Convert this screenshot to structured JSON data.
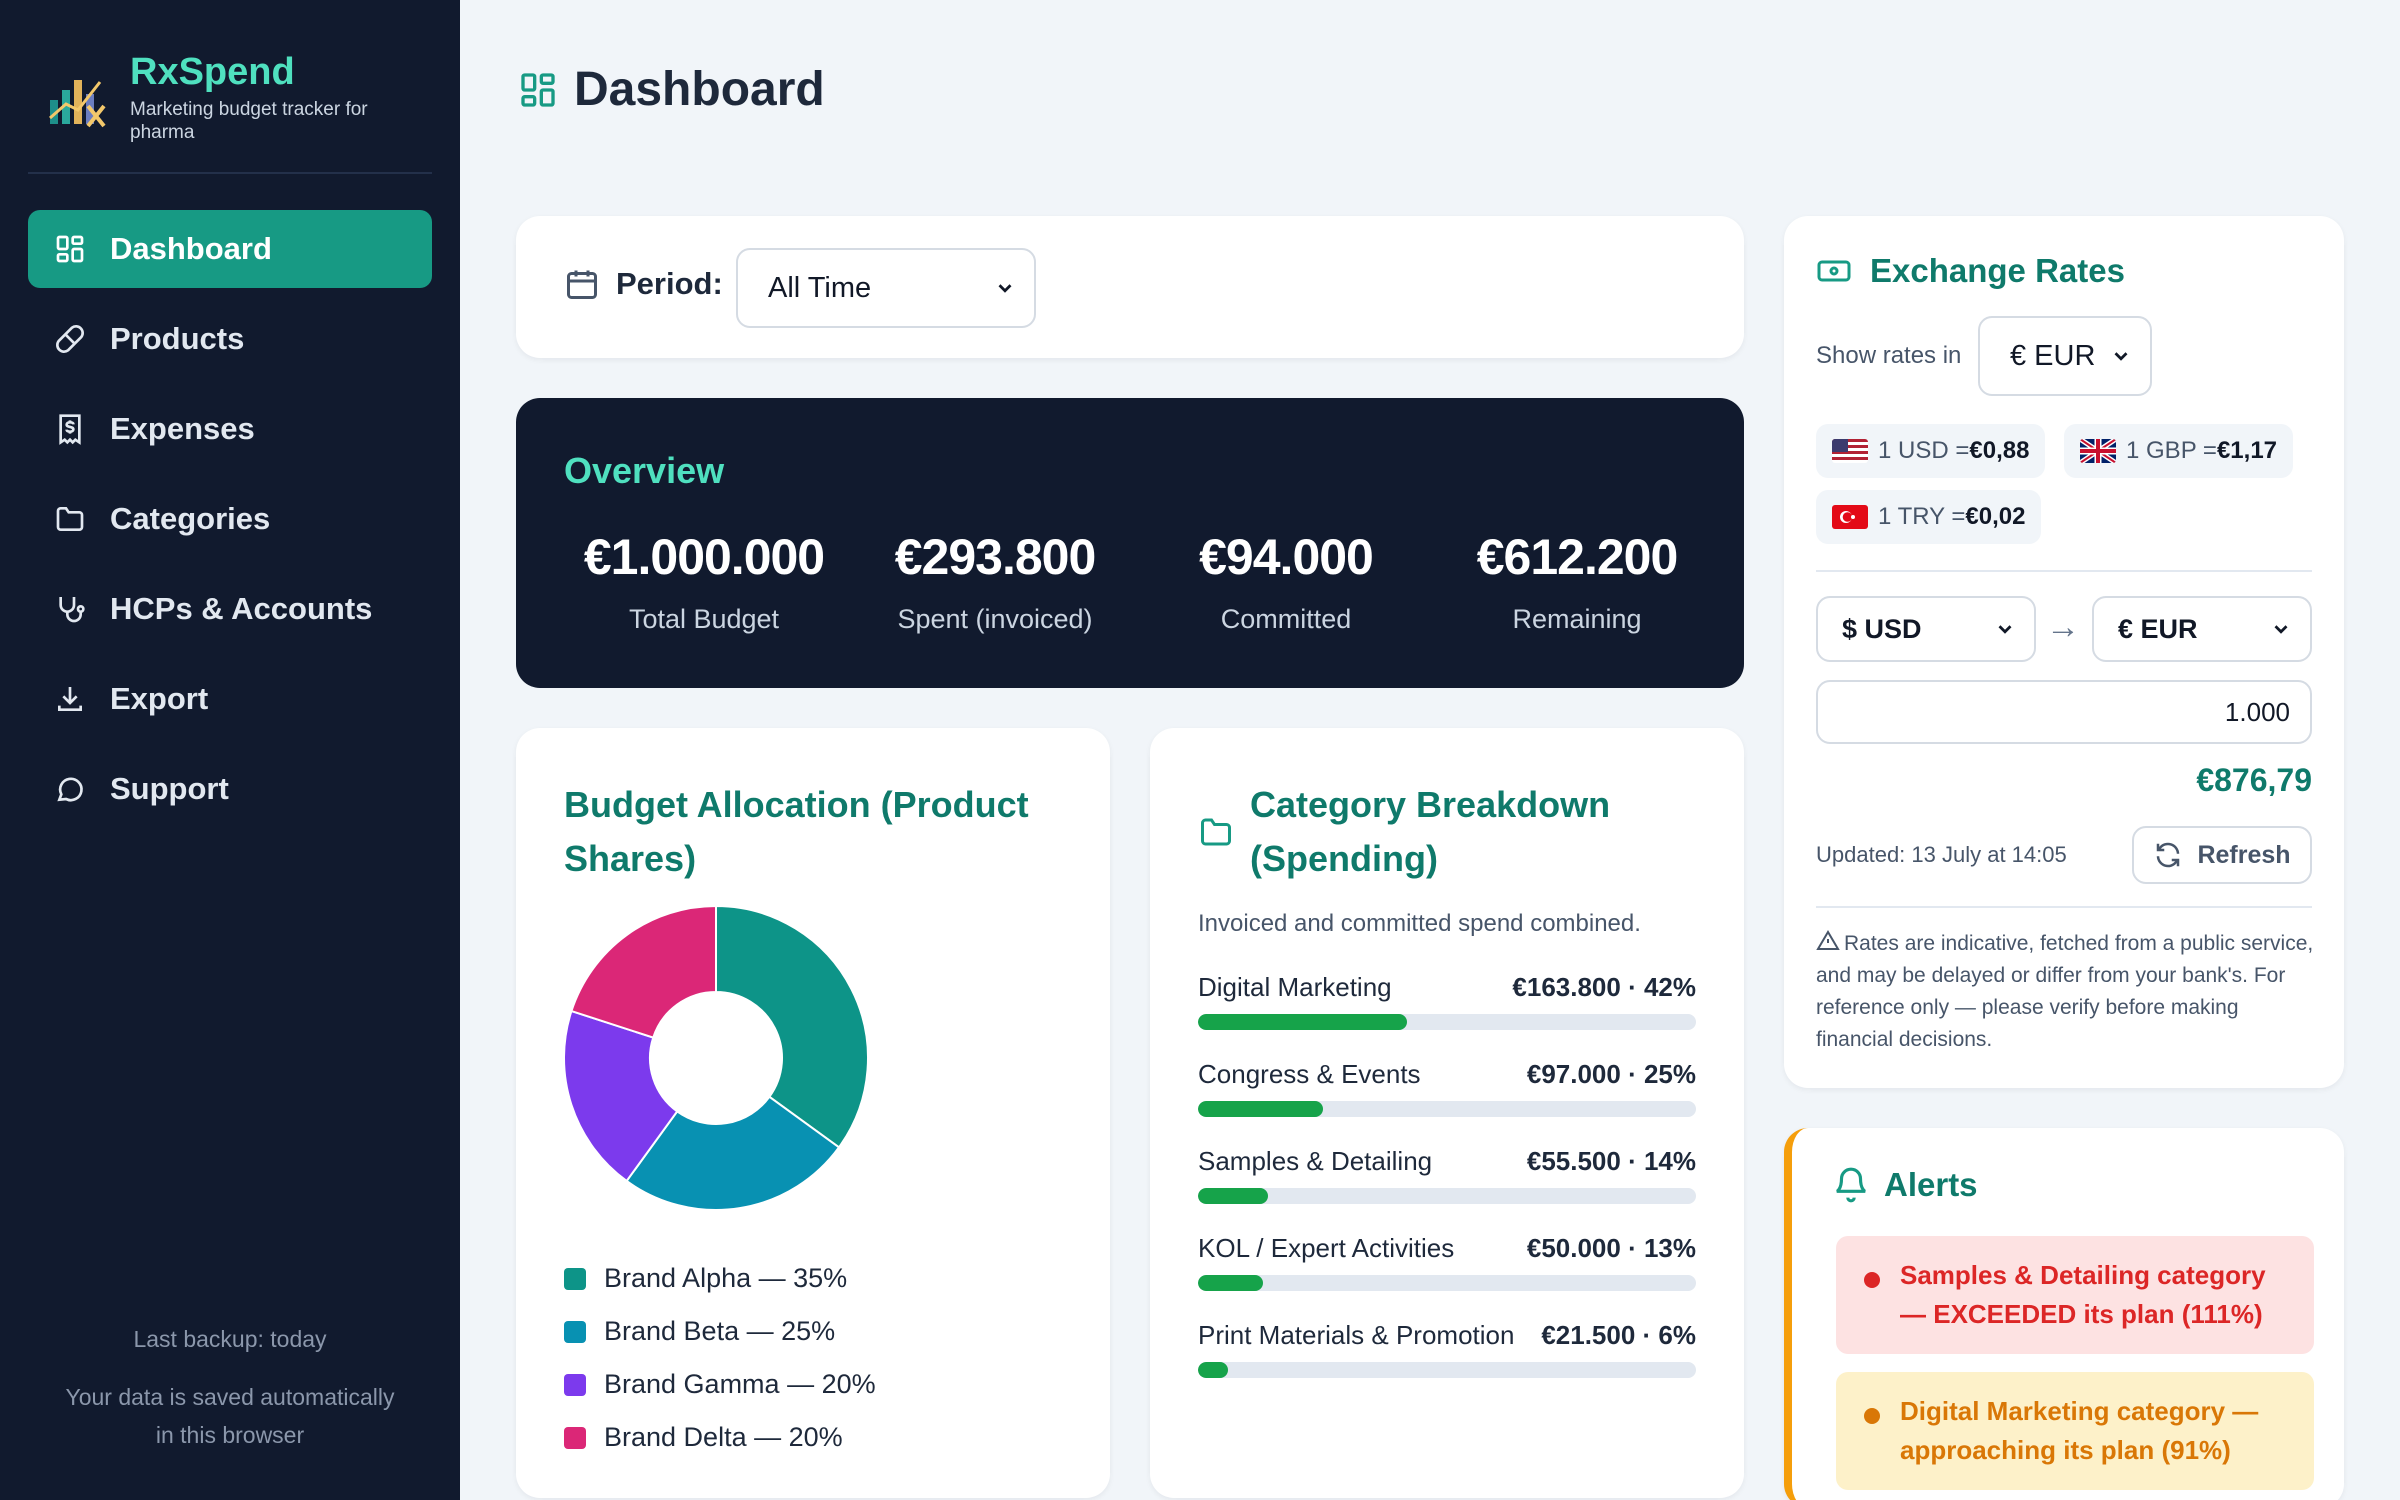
{
  "brand": {
    "name": "RxSpend",
    "tagline": "Marketing budget tracker for pharma"
  },
  "nav": [
    {
      "label": "Dashboard",
      "icon": "grid-icon",
      "active": true
    },
    {
      "label": "Products",
      "icon": "pill-icon"
    },
    {
      "label": "Expenses",
      "icon": "receipt-icon"
    },
    {
      "label": "Categories",
      "icon": "folder-icon"
    },
    {
      "label": "HCPs & Accounts",
      "icon": "stethoscope-icon"
    },
    {
      "label": "Export",
      "icon": "download-icon"
    },
    {
      "label": "Support",
      "icon": "chat-icon"
    }
  ],
  "sidebar_footer": {
    "backup": "Last backup: today",
    "saved": "Your data is saved automatically in this browser"
  },
  "page": {
    "title": "Dashboard"
  },
  "period": {
    "label": "Period:",
    "value": "All Time"
  },
  "overview": {
    "title": "Overview",
    "stats": [
      {
        "value": "€1.000.000",
        "label": "Total Budget"
      },
      {
        "value": "€293.800",
        "label": "Spent (invoiced)"
      },
      {
        "value": "€94.000",
        "label": "Committed"
      },
      {
        "value": "€612.200",
        "label": "Remaining"
      }
    ]
  },
  "allocation": {
    "title": "Budget Allocation (Product Shares)",
    "items": [
      {
        "label": "Brand Alpha — 35%",
        "share": 35,
        "color": "#0d9488"
      },
      {
        "label": "Brand Beta — 25%",
        "share": 25,
        "color": "#0891b2"
      },
      {
        "label": "Brand Gamma — 20%",
        "share": 20,
        "color": "#7c3aed"
      },
      {
        "label": "Brand Delta — 20%",
        "share": 20,
        "color": "#db2777"
      }
    ]
  },
  "category": {
    "title": "Category Breakdown (Spending)",
    "subtitle": "Invoiced and committed spend combined.",
    "rows": [
      {
        "name": "Digital Marketing",
        "value": "€163.800 · 42%",
        "pct": 42
      },
      {
        "name": "Congress & Events",
        "value": "€97.000 · 25%",
        "pct": 25
      },
      {
        "name": "Samples & Detailing",
        "value": "€55.500 · 14%",
        "pct": 14
      },
      {
        "name": "KOL / Expert Activities",
        "value": "€50.000 · 13%",
        "pct": 13
      },
      {
        "name": "Print Materials & Promotion",
        "value": "€21.500 · 6%",
        "pct": 6
      }
    ]
  },
  "fx": {
    "title": "Exchange Rates",
    "show_label": "Show rates in",
    "show_currency": "€ EUR",
    "rates": [
      {
        "text": "1 USD = ",
        "value": "€0,88",
        "flag": "us-flag-icon"
      },
      {
        "text": "1 GBP = ",
        "value": "€1,17",
        "flag": "uk-flag-icon"
      },
      {
        "text": "1 TRY = ",
        "value": "€0,02",
        "flag": "tr-flag-icon"
      }
    ],
    "from": "$ USD",
    "to": "€ EUR",
    "amount": "1.000",
    "result": "€876,79",
    "updated": "Updated: 13 July at 14:05",
    "refresh_label": "Refresh",
    "note": "Rates are indicative, fetched from a public service, and may be delayed or differ from your bank's. For reference only — please verify before making financial decisions."
  },
  "alerts": {
    "title": "Alerts",
    "items": [
      {
        "text": "Samples & Detailing category — EXCEEDED its plan (111%)",
        "level": "danger"
      },
      {
        "text": "Digital Marketing category — approaching its plan (91%)",
        "level": "warning"
      }
    ]
  },
  "colors": {
    "accent": "#179a84",
    "sidebar_bg": "#111a2e",
    "teal_text": "#0f7a6b",
    "bar": "#16a34a",
    "danger": "#dc2626",
    "warning": "#d97706"
  }
}
